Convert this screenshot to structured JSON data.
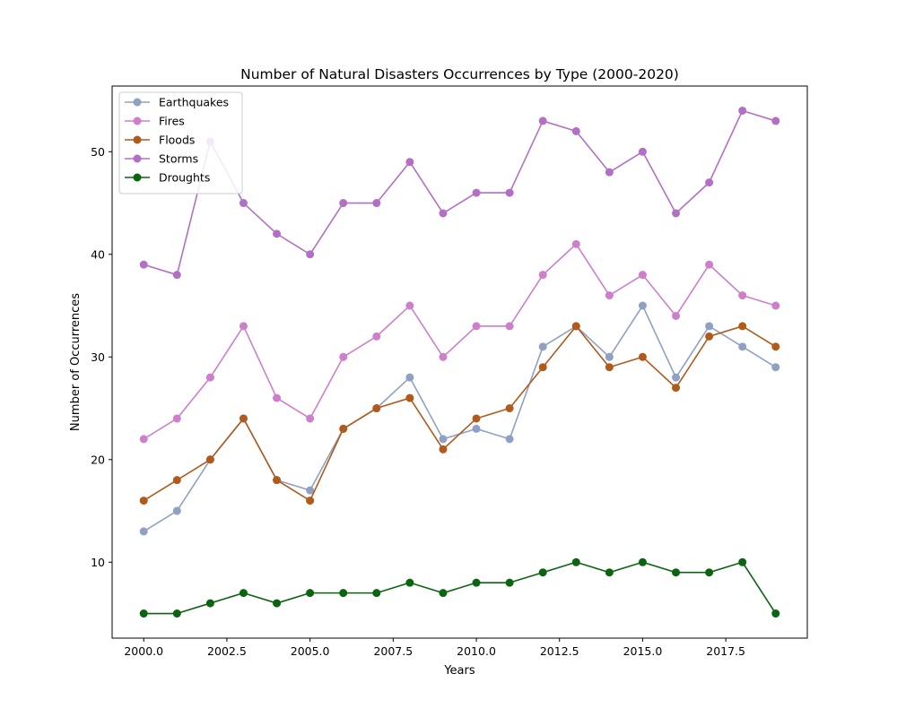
{
  "chart_data": {
    "type": "line",
    "title": "Number of Natural Disasters Occurrences by Type (2000-2020)",
    "xlabel": "Years",
    "ylabel": "Number of Occurrences",
    "x": [
      2000,
      2001,
      2002,
      2003,
      2004,
      2005,
      2006,
      2007,
      2008,
      2009,
      2010,
      2011,
      2012,
      2013,
      2014,
      2015,
      2016,
      2017,
      2018,
      2019
    ],
    "xlim": [
      1999.05,
      2019.95
    ],
    "ylim": [
      2.6,
      56.4
    ],
    "x_ticks": [
      2000,
      2002.5,
      2005,
      2007.5,
      2010,
      2012.5,
      2015,
      2017.5
    ],
    "x_tick_labels": [
      "2000.0",
      "2002.5",
      "2005.0",
      "2007.5",
      "2010.0",
      "2012.5",
      "2015.0",
      "2017.5"
    ],
    "y_ticks": [
      10,
      20,
      30,
      40,
      50
    ],
    "y_tick_labels": [
      "10",
      "20",
      "30",
      "40",
      "50"
    ],
    "grid": false,
    "legend_position": "top-left",
    "series": [
      {
        "name": "Earthquakes",
        "color": "#8fa1c2",
        "values": [
          13,
          15,
          20,
          24,
          18,
          17,
          23,
          25,
          28,
          22,
          23,
          22,
          31,
          33,
          30,
          35,
          28,
          33,
          31,
          29
        ]
      },
      {
        "name": "Fires",
        "color": "#cd7fcc",
        "values": [
          22,
          24,
          28,
          33,
          26,
          24,
          30,
          32,
          35,
          30,
          33,
          33,
          38,
          41,
          36,
          38,
          34,
          39,
          36,
          35
        ]
      },
      {
        "name": "Floods",
        "color": "#b05a1c",
        "values": [
          16,
          18,
          20,
          24,
          18,
          16,
          23,
          25,
          26,
          21,
          24,
          25,
          29,
          33,
          29,
          30,
          27,
          32,
          33,
          31
        ]
      },
      {
        "name": "Storms",
        "color": "#b36fc6",
        "values": [
          39,
          38,
          51,
          45,
          42,
          40,
          45,
          45,
          49,
          44,
          46,
          46,
          53,
          52,
          48,
          50,
          44,
          47,
          54,
          53
        ]
      },
      {
        "name": "Droughts",
        "color": "#0a6410",
        "values": [
          5,
          5,
          6,
          7,
          6,
          7,
          7,
          7,
          8,
          7,
          8,
          8,
          9,
          10,
          9,
          10,
          9,
          9,
          10,
          5
        ]
      }
    ]
  }
}
